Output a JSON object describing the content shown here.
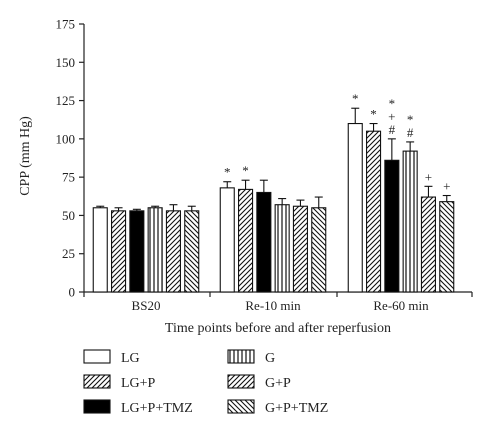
{
  "chart_data": {
    "type": "bar",
    "xlabel": "Time points before and after reperfusion",
    "ylabel": "CPP (mm Hg)",
    "ylim": [
      0,
      175
    ],
    "yticks": [
      0,
      25,
      50,
      75,
      100,
      125,
      150,
      175
    ],
    "categories": [
      "BS20",
      "Re-10 min",
      "Re-60 min"
    ],
    "series": [
      {
        "name": "LG",
        "pattern": "open",
        "values": [
          55,
          68,
          110
        ],
        "errors": [
          1,
          4,
          10
        ],
        "annotations": [
          "",
          "*",
          "*"
        ]
      },
      {
        "name": "LG+P",
        "pattern": "diag-right",
        "values": [
          53,
          67,
          105
        ],
        "errors": [
          2,
          6,
          5
        ],
        "annotations": [
          "",
          "*",
          "*"
        ]
      },
      {
        "name": "LG+P+TMZ",
        "pattern": "solid",
        "values": [
          53,
          65,
          86
        ],
        "errors": [
          1,
          8,
          14
        ],
        "annotations": [
          "",
          "",
          "*\n+\n#"
        ]
      },
      {
        "name": "G",
        "pattern": "vertical",
        "values": [
          55,
          57,
          92
        ],
        "errors": [
          1,
          4,
          6
        ],
        "annotations": [
          "",
          "",
          "*\n#"
        ]
      },
      {
        "name": "G+P",
        "pattern": "diag-right",
        "values": [
          53,
          56,
          62
        ],
        "errors": [
          4,
          4,
          7
        ],
        "annotations": [
          "",
          "",
          "+"
        ]
      },
      {
        "name": "G+P+TMZ",
        "pattern": "diag-left",
        "values": [
          53,
          55,
          59
        ],
        "errors": [
          3,
          7,
          4
        ],
        "annotations": [
          "",
          "",
          "+"
        ]
      }
    ],
    "legend": {
      "placement": "bottom",
      "columns": 2,
      "order": [
        "LG",
        "G",
        "LG+P",
        "G+P",
        "LG+P+TMZ",
        "G+P+TMZ"
      ]
    },
    "grid": false
  }
}
